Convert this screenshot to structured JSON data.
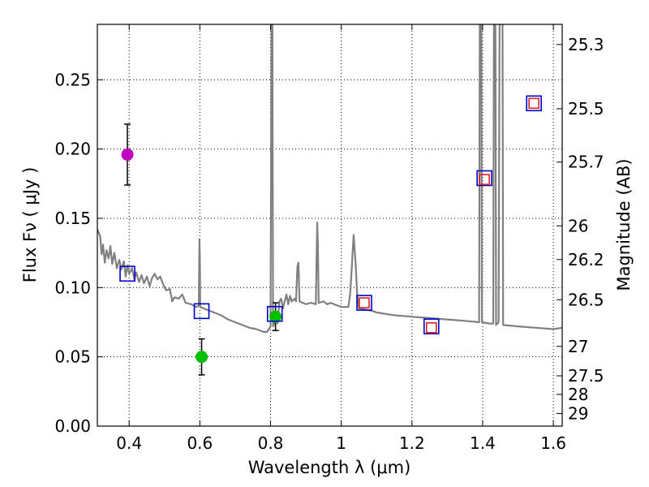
{
  "chart_data": {
    "type": "scatter",
    "xlabel": "Wavelength  λ (μm)",
    "ylabel": "Flux  Fν  ( μJy )",
    "y2label": "Magnitude (AB)",
    "xlim": [
      0.31,
      1.625
    ],
    "ylim": [
      0.0,
      0.29
    ],
    "grid": true,
    "x_ticks": [
      {
        "v": 0.4,
        "label": "0.4"
      },
      {
        "v": 0.6,
        "label": "0.6"
      },
      {
        "v": 0.8,
        "label": "0.8"
      },
      {
        "v": 1.0,
        "label": "1"
      },
      {
        "v": 1.2,
        "label": "1.2"
      },
      {
        "v": 1.4,
        "label": "1.4"
      },
      {
        "v": 1.6,
        "label": "1.6"
      }
    ],
    "y_ticks": [
      {
        "v": 0.0,
        "label": "0.00"
      },
      {
        "v": 0.05,
        "label": "0.05"
      },
      {
        "v": 0.1,
        "label": "0.10"
      },
      {
        "v": 0.15,
        "label": "0.15"
      },
      {
        "v": 0.2,
        "label": "0.20"
      },
      {
        "v": 0.25,
        "label": "0.25"
      }
    ],
    "mag_ticks": [
      {
        "mag": 25.3,
        "label": "25.3"
      },
      {
        "mag": 25.5,
        "label": "25.5"
      },
      {
        "mag": 25.7,
        "label": "25.7"
      },
      {
        "mag": 26.0,
        "label": "26"
      },
      {
        "mag": 26.2,
        "label": "26.2"
      },
      {
        "mag": 26.5,
        "label": "26.5"
      },
      {
        "mag": 27.0,
        "label": "27"
      },
      {
        "mag": 27.5,
        "label": "27.5"
      },
      {
        "mag": 28.0,
        "label": "28"
      },
      {
        "mag": 29.0,
        "label": "29"
      }
    ],
    "spectrum": {
      "color": "#808080",
      "points": [
        [
          0.31,
          0.142
        ],
        [
          0.318,
          0.137
        ],
        [
          0.322,
          0.124
        ],
        [
          0.326,
          0.131
        ],
        [
          0.331,
          0.118
        ],
        [
          0.336,
          0.127
        ],
        [
          0.342,
          0.121
        ],
        [
          0.347,
          0.13
        ],
        [
          0.352,
          0.117
        ],
        [
          0.358,
          0.125
        ],
        [
          0.365,
          0.114
        ],
        [
          0.372,
          0.12
        ],
        [
          0.378,
          0.113
        ],
        [
          0.385,
          0.119
        ],
        [
          0.39,
          0.108
        ],
        [
          0.395,
          0.116
        ],
        [
          0.4,
          0.11
        ],
        [
          0.408,
          0.114
        ],
        [
          0.415,
          0.106
        ],
        [
          0.42,
          0.111
        ],
        [
          0.428,
          0.104
        ],
        [
          0.435,
          0.109
        ],
        [
          0.442,
          0.103
        ],
        [
          0.45,
          0.108
        ],
        [
          0.458,
          0.101
        ],
        [
          0.465,
          0.107
        ],
        [
          0.472,
          0.11
        ],
        [
          0.48,
          0.106
        ],
        [
          0.488,
          0.108
        ],
        [
          0.495,
          0.103
        ],
        [
          0.505,
          0.098
        ],
        [
          0.515,
          0.099
        ],
        [
          0.522,
          0.09
        ],
        [
          0.528,
          0.093
        ],
        [
          0.54,
          0.092
        ],
        [
          0.55,
          0.095
        ],
        [
          0.56,
          0.089
        ],
        [
          0.575,
          0.088
        ],
        [
          0.59,
          0.086
        ],
        [
          0.597,
          0.087
        ],
        [
          0.598,
          0.115
        ],
        [
          0.599,
          0.135
        ],
        [
          0.6,
          0.12
        ],
        [
          0.601,
          0.086
        ],
        [
          0.62,
          0.084
        ],
        [
          0.64,
          0.082
        ],
        [
          0.66,
          0.08
        ],
        [
          0.68,
          0.077
        ],
        [
          0.7,
          0.075
        ],
        [
          0.72,
          0.073
        ],
        [
          0.74,
          0.071
        ],
        [
          0.76,
          0.07
        ],
        [
          0.78,
          0.068
        ],
        [
          0.79,
          0.068
        ],
        [
          0.8,
          0.072
        ],
        [
          0.803,
          0.31
        ],
        [
          0.805,
          0.31
        ],
        [
          0.807,
          0.072
        ],
        [
          0.812,
          0.075
        ],
        [
          0.815,
          0.08
        ],
        [
          0.82,
          0.074
        ],
        [
          0.825,
          0.09
        ],
        [
          0.83,
          0.092
        ],
        [
          0.835,
          0.085
        ],
        [
          0.84,
          0.09
        ],
        [
          0.845,
          0.095
        ],
        [
          0.85,
          0.088
        ],
        [
          0.855,
          0.094
        ],
        [
          0.86,
          0.09
        ],
        [
          0.868,
          0.092
        ],
        [
          0.872,
          0.09
        ],
        [
          0.876,
          0.115
        ],
        [
          0.879,
          0.118
        ],
        [
          0.882,
          0.09
        ],
        [
          0.9,
          0.088
        ],
        [
          0.915,
          0.089
        ],
        [
          0.928,
          0.088
        ],
        [
          0.932,
          0.147
        ],
        [
          0.934,
          0.13
        ],
        [
          0.936,
          0.089
        ],
        [
          0.95,
          0.09
        ],
        [
          0.96,
          0.088
        ],
        [
          0.97,
          0.089
        ],
        [
          0.98,
          0.088
        ],
        [
          0.99,
          0.087
        ],
        [
          1.0,
          0.086
        ],
        [
          1.01,
          0.086
        ],
        [
          1.02,
          0.086
        ],
        [
          1.025,
          0.095
        ],
        [
          1.03,
          0.115
        ],
        [
          1.035,
          0.138
        ],
        [
          1.04,
          0.12
        ],
        [
          1.045,
          0.095
        ],
        [
          1.05,
          0.085
        ],
        [
          1.07,
          0.084
        ],
        [
          1.09,
          0.083
        ],
        [
          1.1,
          0.082
        ],
        [
          1.15,
          0.08
        ],
        [
          1.2,
          0.079
        ],
        [
          1.25,
          0.078
        ],
        [
          1.3,
          0.077
        ],
        [
          1.35,
          0.076
        ],
        [
          1.39,
          0.075
        ],
        [
          1.392,
          0.31
        ],
        [
          1.396,
          0.31
        ],
        [
          1.398,
          0.075
        ],
        [
          1.42,
          0.074
        ],
        [
          1.43,
          0.074
        ],
        [
          1.432,
          0.31
        ],
        [
          1.436,
          0.31
        ],
        [
          1.438,
          0.073
        ],
        [
          1.445,
          0.075
        ],
        [
          1.448,
          0.31
        ],
        [
          1.456,
          0.31
        ],
        [
          1.458,
          0.073
        ],
        [
          1.5,
          0.072
        ],
        [
          1.55,
          0.071
        ],
        [
          1.6,
          0.07
        ],
        [
          1.625,
          0.071
        ]
      ]
    },
    "series": [
      {
        "name": "observed-magenta",
        "marker": "circle",
        "color": "#bf00bf",
        "points": [
          {
            "x": 0.395,
            "y": 0.196,
            "yerr": 0.022
          }
        ]
      },
      {
        "name": "observed-green",
        "marker": "circle",
        "color": "#00c000",
        "points": [
          {
            "x": 0.605,
            "y": 0.05,
            "yerr": 0.013
          },
          {
            "x": 0.814,
            "y": 0.079,
            "yerr": 0.01
          }
        ]
      },
      {
        "name": "model-blue",
        "marker": "square",
        "color": "#0000cc",
        "points": [
          {
            "x": 0.395,
            "y": 0.11
          },
          {
            "x": 0.605,
            "y": 0.083
          },
          {
            "x": 0.812,
            "y": 0.081
          },
          {
            "x": 1.065,
            "y": 0.089
          },
          {
            "x": 1.255,
            "y": 0.072
          },
          {
            "x": 1.405,
            "y": 0.179
          },
          {
            "x": 1.545,
            "y": 0.233
          }
        ]
      },
      {
        "name": "model-red",
        "marker": "square",
        "color": "#dd2222",
        "points": [
          {
            "x": 1.065,
            "y": 0.089
          },
          {
            "x": 1.255,
            "y": 0.071
          },
          {
            "x": 1.405,
            "y": 0.178
          },
          {
            "x": 1.545,
            "y": 0.233
          }
        ]
      }
    ]
  }
}
